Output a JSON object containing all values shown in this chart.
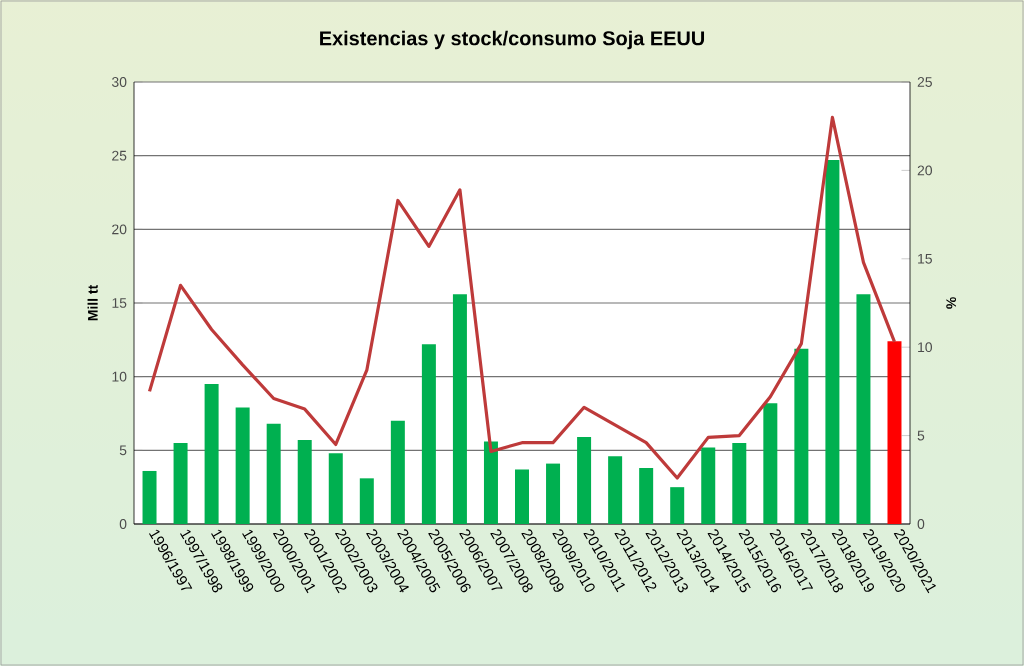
{
  "chart_data": {
    "type": "bar",
    "title": "Existencias y stock/consumo Soja EEUU",
    "ylabel": "Mill tt",
    "y2label": "%",
    "categories": [
      "1996/1997",
      "1997/1998",
      "1998/1999",
      "1999/2000",
      "2000/2001",
      "2001/2002",
      "2002/2003",
      "2003/2004",
      "2004/2005",
      "2005/2006",
      "2006/2007",
      "2007/2008",
      "2008/2009",
      "2009/2010",
      "2010/2011",
      "2011/2012",
      "2012/2013",
      "2013/2014",
      "2014/2015",
      "2015/2016",
      "2016/2017",
      "2017/2018",
      "2018/2019",
      "2019/2020",
      "2020/2021"
    ],
    "series": [
      {
        "colors": [
          "#00b050",
          "#00b050",
          "#00b050",
          "#00b050",
          "#00b050",
          "#00b050",
          "#00b050",
          "#00b050",
          "#00b050",
          "#00b050",
          "#00b050",
          "#00b050",
          "#00b050",
          "#00b050",
          "#00b050",
          "#00b050",
          "#00b050",
          "#00b050",
          "#00b050",
          "#00b050",
          "#00b050",
          "#00b050",
          "#00b050",
          "#00b050",
          "#ff0000"
        ],
        "values": [
          3.6,
          5.5,
          9.5,
          7.9,
          6.8,
          5.7,
          4.8,
          3.1,
          7.0,
          12.2,
          15.6,
          5.6,
          3.7,
          4.1,
          5.9,
          4.6,
          3.8,
          2.5,
          5.2,
          5.5,
          8.2,
          11.9,
          24.7,
          15.6,
          12.4
        ]
      },
      {
        "type": "line",
        "axis": "y2",
        "color": "#be3a3a",
        "values": [
          7.5,
          13.5,
          11.0,
          9.0,
          7.1,
          6.5,
          4.5,
          8.7,
          18.3,
          15.7,
          18.9,
          4.1,
          4.6,
          4.6,
          6.6,
          5.6,
          4.6,
          2.6,
          4.9,
          5.0,
          7.2,
          10.2,
          23.0,
          14.8,
          10.3
        ]
      }
    ],
    "ylim": [
      0,
      30
    ],
    "yticks": [
      0,
      5,
      10,
      15,
      20,
      25,
      30
    ],
    "y2lim": [
      0,
      25
    ],
    "y2ticks": [
      0,
      5,
      10,
      15,
      20,
      25
    ],
    "grid": "y"
  }
}
